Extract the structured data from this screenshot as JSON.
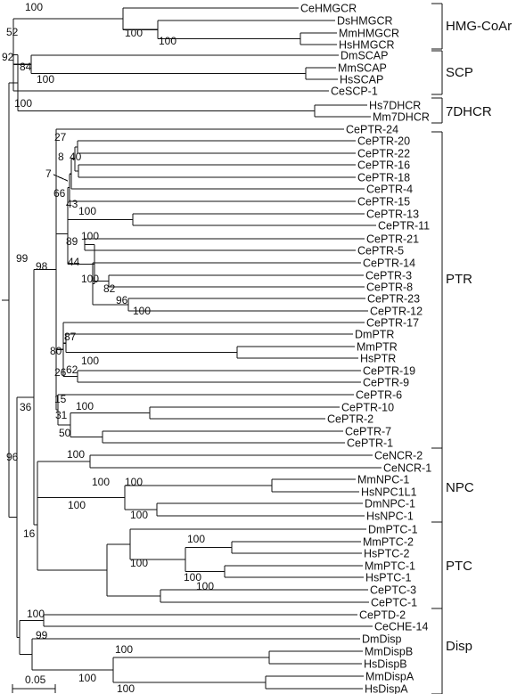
{
  "leaves": [
    {
      "id": "CeHMGCR",
      "label": "CeHMGCR"
    },
    {
      "id": "DsHMGCR",
      "label": "DsHMGCR"
    },
    {
      "id": "MmHMGCR",
      "label": "MmHMGCR"
    },
    {
      "id": "HsHMGCR",
      "label": "HsHMGCR"
    },
    {
      "id": "DmSCAP",
      "label": "DmSCAP"
    },
    {
      "id": "MmSCAP",
      "label": "MmSCAP"
    },
    {
      "id": "HsSCAP",
      "label": "HsSCAP"
    },
    {
      "id": "CeSCP1",
      "label": "CeSCP-1"
    },
    {
      "id": "Hs7DHCR",
      "label": "Hs7DHCR"
    },
    {
      "id": "Mm7DHCR",
      "label": "Mm7DHCR"
    },
    {
      "id": "CePTR24",
      "label": "CePTR-24"
    },
    {
      "id": "CePTR20",
      "label": "CePTR-20"
    },
    {
      "id": "CePTR22",
      "label": "CePTR-22"
    },
    {
      "id": "CePTR16",
      "label": "CePTR-16"
    },
    {
      "id": "CePTR18",
      "label": "CePTR-18"
    },
    {
      "id": "CePTR4",
      "label": "CePTR-4"
    },
    {
      "id": "CePTR15",
      "label": "CePTR-15"
    },
    {
      "id": "CePTR13",
      "label": "CePTR-13"
    },
    {
      "id": "CePTR11",
      "label": "CePTR-11"
    },
    {
      "id": "CePTR21",
      "label": "CePTR-21"
    },
    {
      "id": "CePTR5",
      "label": "CePTR-5"
    },
    {
      "id": "CePTR14",
      "label": "CePTR-14"
    },
    {
      "id": "CePTR3",
      "label": "CePTR-3"
    },
    {
      "id": "CePTR8",
      "label": "CePTR-8"
    },
    {
      "id": "CePTR23",
      "label": "CePTR-23"
    },
    {
      "id": "CePTR12",
      "label": "CePTR-12"
    },
    {
      "id": "CePTR17",
      "label": "CePTR-17"
    },
    {
      "id": "DmPTR",
      "label": "DmPTR"
    },
    {
      "id": "MmPTR",
      "label": "MmPTR"
    },
    {
      "id": "HsPTR",
      "label": "HsPTR"
    },
    {
      "id": "CePTR19",
      "label": "CePTR-19"
    },
    {
      "id": "CePTR9",
      "label": "CePTR-9"
    },
    {
      "id": "CePTR6",
      "label": "CePTR-6"
    },
    {
      "id": "CePTR10",
      "label": "CePTR-10"
    },
    {
      "id": "CePTR2",
      "label": "CePTR-2"
    },
    {
      "id": "CePTR7",
      "label": "CePTR-7"
    },
    {
      "id": "CePTR1",
      "label": "CePTR-1"
    },
    {
      "id": "CeNCR2",
      "label": "CeNCR-2"
    },
    {
      "id": "CeNCR1",
      "label": "CeNCR-1"
    },
    {
      "id": "MmNPC1",
      "label": "MmNPC-1"
    },
    {
      "id": "HsNPC1L1",
      "label": "HsNPC1L1"
    },
    {
      "id": "DmNPC1",
      "label": "DmNPC-1"
    },
    {
      "id": "HsNPC1",
      "label": "HsNPC-1"
    },
    {
      "id": "DmPTC1",
      "label": "DmPTC-1"
    },
    {
      "id": "MmPTC2",
      "label": "MmPTC-2"
    },
    {
      "id": "HsPTC2",
      "label": "HsPTC-2"
    },
    {
      "id": "MmPTC1",
      "label": "MmPTC-1"
    },
    {
      "id": "HsPTC1",
      "label": "HsPTC-1"
    },
    {
      "id": "CePTC3",
      "label": "CePTC-3"
    },
    {
      "id": "CePTC1",
      "label": "CePTC-1"
    },
    {
      "id": "CePTD2",
      "label": "CePTD-2"
    },
    {
      "id": "CeCHE14",
      "label": "CeCHE-14"
    },
    {
      "id": "DmDisp",
      "label": "DmDisp"
    },
    {
      "id": "MmDispB",
      "label": "MmDispB"
    },
    {
      "id": "HsDispB",
      "label": "HsDispB"
    },
    {
      "id": "MmDispA",
      "label": "MmDispA"
    },
    {
      "id": "HsDispA",
      "label": "HsDispA"
    }
  ],
  "bootstrap_values": [
    "100",
    "100",
    "100",
    "52",
    "84",
    "100",
    "92",
    "100",
    "27",
    "8",
    "40",
    "7",
    "66",
    "43",
    "100",
    "89",
    "100",
    "44",
    "100",
    "82",
    "96",
    "100",
    "98",
    "87",
    "80",
    "100",
    "26",
    "62",
    "15",
    "31",
    "100",
    "50",
    "99",
    "36",
    "100",
    "100",
    "100",
    "100",
    "100",
    "100",
    "100",
    "100",
    "100",
    "16",
    "96",
    "100",
    "99",
    "100",
    "100",
    "100"
  ],
  "groups": [
    {
      "id": "hmg",
      "label": "HMG-CoAr"
    },
    {
      "id": "scp",
      "label": "SCP"
    },
    {
      "id": "dhcr",
      "label": "7DHCR"
    },
    {
      "id": "ptr",
      "label": "PTR"
    },
    {
      "id": "npc",
      "label": "NPC"
    },
    {
      "id": "ptc",
      "label": "PTC"
    },
    {
      "id": "disp",
      "label": "Disp"
    }
  ],
  "scale_bar": {
    "label": "0.05"
  }
}
